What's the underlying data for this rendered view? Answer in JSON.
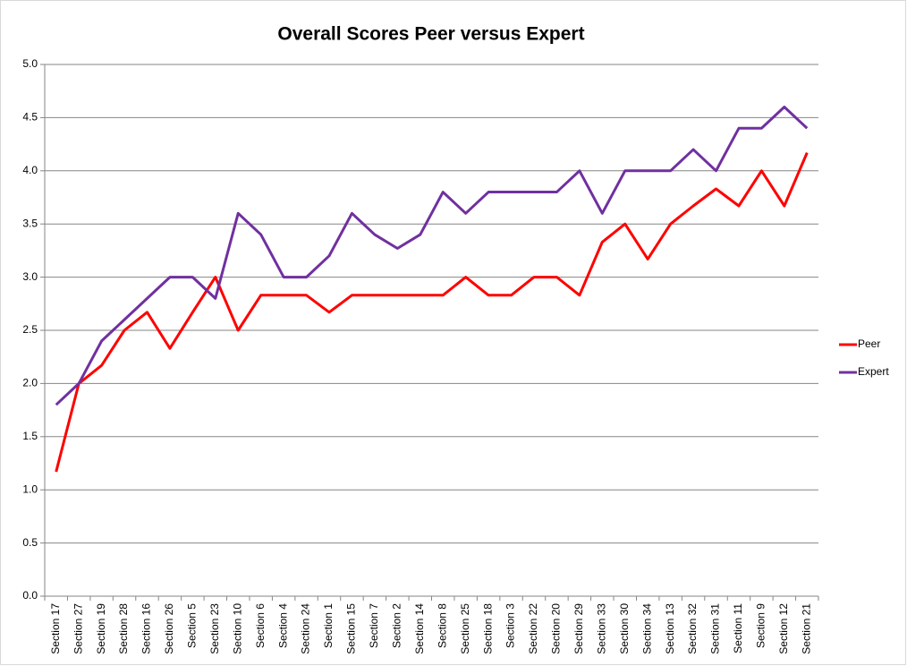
{
  "chart_data": {
    "type": "line",
    "title": "Overall Scores Peer versus Expert",
    "categories": [
      "Section 17",
      "Section 27",
      "Section 19",
      "Section 28",
      "Section 16",
      "Section 26",
      "Section 5",
      "Section 23",
      "Section 10",
      "Section 6",
      "Section 4",
      "Section 24",
      "Section 1",
      "Section 15",
      "Section 7",
      "Section 2",
      "Section 14",
      "Section 8",
      "Section 25",
      "Section 18",
      "Section 3",
      "Section 22",
      "Section 20",
      "Section 29",
      "Section 33",
      "Section 30",
      "Section 34",
      "Section 13",
      "Section 32",
      "Section 31",
      "Section 11",
      "Section 9",
      "Section 12",
      "Section 21"
    ],
    "series": [
      {
        "name": "Peer",
        "color": "#ff0000",
        "values": [
          1.17,
          2.0,
          2.17,
          2.5,
          2.67,
          2.33,
          2.67,
          3.0,
          2.5,
          2.83,
          2.83,
          2.83,
          2.67,
          2.83,
          2.83,
          2.83,
          2.83,
          2.83,
          3.0,
          2.83,
          2.83,
          3.0,
          3.0,
          2.83,
          3.33,
          3.5,
          3.17,
          3.5,
          3.67,
          3.83,
          3.67,
          4.0,
          3.67,
          4.17
        ]
      },
      {
        "name": "Expert",
        "color": "#7030a0",
        "values": [
          1.8,
          2.0,
          2.4,
          2.6,
          2.8,
          3.0,
          3.0,
          2.8,
          3.6,
          3.4,
          3.0,
          3.0,
          3.2,
          3.6,
          3.4,
          3.27,
          3.4,
          3.8,
          3.6,
          3.8,
          3.8,
          3.8,
          3.8,
          4.0,
          3.6,
          4.0,
          4.0,
          4.0,
          4.2,
          4.0,
          4.4,
          4.4,
          4.6,
          4.4
        ]
      }
    ],
    "ylim": [
      0,
      5
    ],
    "yticks": [
      {
        "value": 0,
        "label": "0.0"
      },
      0.5,
      {
        "value": 1,
        "label": "1.0"
      },
      1.5,
      {
        "value": 2,
        "label": "2.0"
      },
      2.5,
      {
        "value": 3,
        "label": "3.0"
      },
      3.5,
      {
        "value": 4,
        "label": "4.0"
      },
      4.5,
      {
        "value": 5,
        "label": "5.0"
      }
    ],
    "grid": true,
    "legend": "right"
  }
}
